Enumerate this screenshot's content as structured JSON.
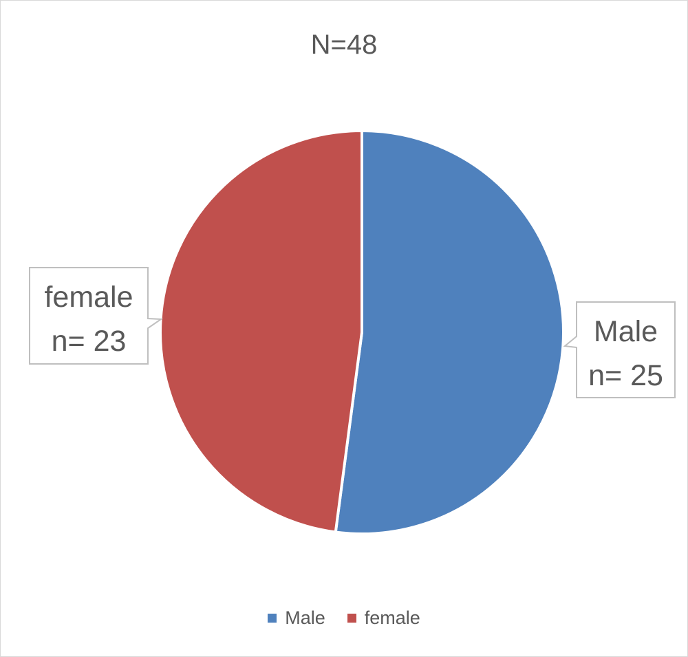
{
  "chart_data": {
    "type": "pie",
    "title": "N=48",
    "categories": [
      "Male",
      "female"
    ],
    "values": [
      25,
      23
    ],
    "colors": [
      "#4f81bd",
      "#c0504d"
    ],
    "data_labels": [
      {
        "category": "Male",
        "count_text": "n= 25"
      },
      {
        "category": "female",
        "count_text": "n= 23"
      }
    ],
    "legend_position": "bottom"
  }
}
